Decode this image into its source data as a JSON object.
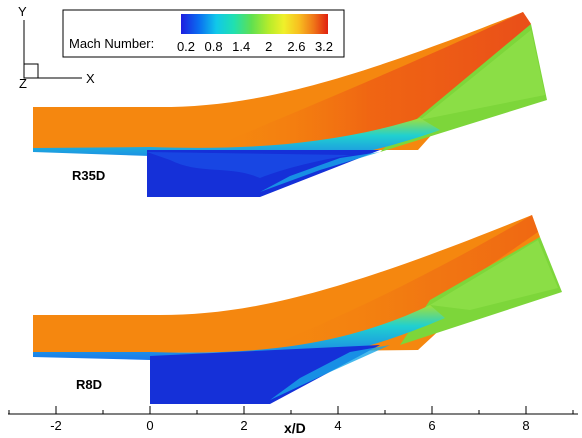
{
  "legend": {
    "title": "Mach Number:",
    "ticks": [
      "0.2",
      "0.8",
      "1.4",
      "2",
      "2.6",
      "3.2"
    ]
  },
  "triad": {
    "y": "Y",
    "x": "X",
    "z": "Z"
  },
  "panels": [
    {
      "label": "R35D"
    },
    {
      "label": "R8D"
    }
  ],
  "xaxis": {
    "title": "x/D",
    "ticks": [
      "-2",
      "0",
      "2",
      "4",
      "6",
      "8"
    ]
  },
  "colors": {
    "freestream": "#f5870f",
    "recirculation": "#1530d8",
    "shear_layer": "#18b8e8",
    "post_shock": "#7dd63a"
  }
}
